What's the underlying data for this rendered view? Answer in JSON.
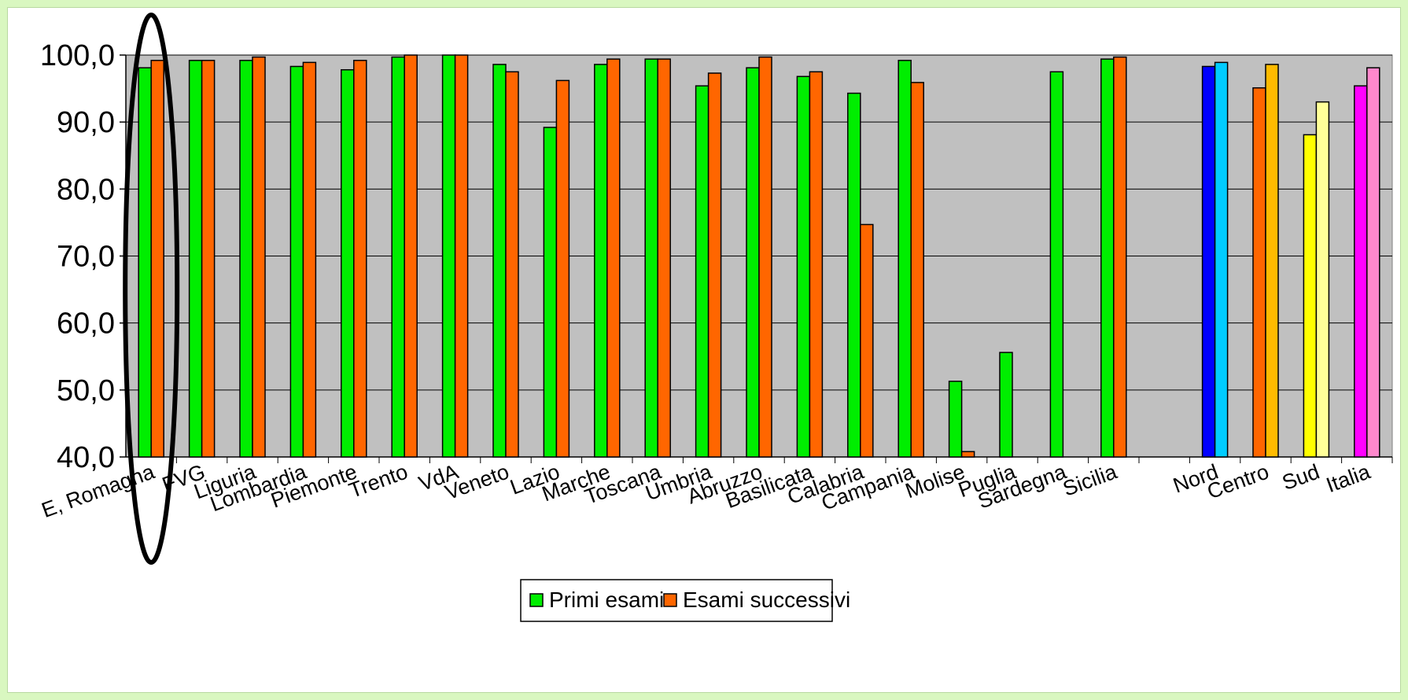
{
  "chart_data": {
    "type": "bar",
    "title": "",
    "xlabel": "",
    "ylabel": "",
    "ylim": [
      40,
      100
    ],
    "yticks": [
      "40,0",
      "50,0",
      "60,0",
      "70,0",
      "80,0",
      "90,0",
      "100,0"
    ],
    "ytick_values": [
      40,
      50,
      60,
      70,
      80,
      90,
      100
    ],
    "grid": true,
    "legend_position": "bottom-center",
    "categories": [
      "E, Romagna",
      "FVG",
      "Liguria",
      "Lombardia",
      "Piemonte",
      "Trento",
      "VdA",
      "Veneto",
      "Lazio",
      "Marche",
      "Toscana",
      "Umbria",
      "Abruzzo",
      "Basilicata",
      "Calabria",
      "Campania",
      "Molise",
      "Puglia",
      "Sardegna",
      "Sicilia",
      "",
      "Nord",
      "Centro",
      "Sud",
      "Italia"
    ],
    "series": [
      {
        "name": "Primi esami",
        "color": "#00ee00",
        "values": [
          98.1,
          99.2,
          99.2,
          98.3,
          97.8,
          99.7,
          100.0,
          98.6,
          89.2,
          98.6,
          99.4,
          95.4,
          98.1,
          96.8,
          94.3,
          99.2,
          51.3,
          55.6,
          97.5,
          99.4,
          null,
          98.3,
          95.1,
          88.1,
          95.4
        ]
      },
      {
        "name": "Esami successivi",
        "color": "#ff6600",
        "values": [
          99.2,
          99.2,
          99.7,
          98.9,
          99.2,
          100.0,
          100.0,
          97.5,
          96.2,
          99.4,
          99.4,
          97.3,
          99.7,
          97.5,
          74.7,
          95.9,
          40.8,
          null,
          null,
          99.7,
          null,
          98.9,
          98.6,
          93.0,
          98.1
        ]
      }
    ],
    "aggregate_colors": {
      "Nord": [
        "#0000ff",
        "#00ccff"
      ],
      "Centro": [
        "#ff6600",
        "#ffbb00"
      ],
      "Sud": [
        "#ffff00",
        "#ffff99"
      ],
      "Italia": [
        "#ff00ff",
        "#ff88cc"
      ]
    },
    "plot_background": "#c0c0c0",
    "annotation": "ellipse around E, Romagna"
  }
}
